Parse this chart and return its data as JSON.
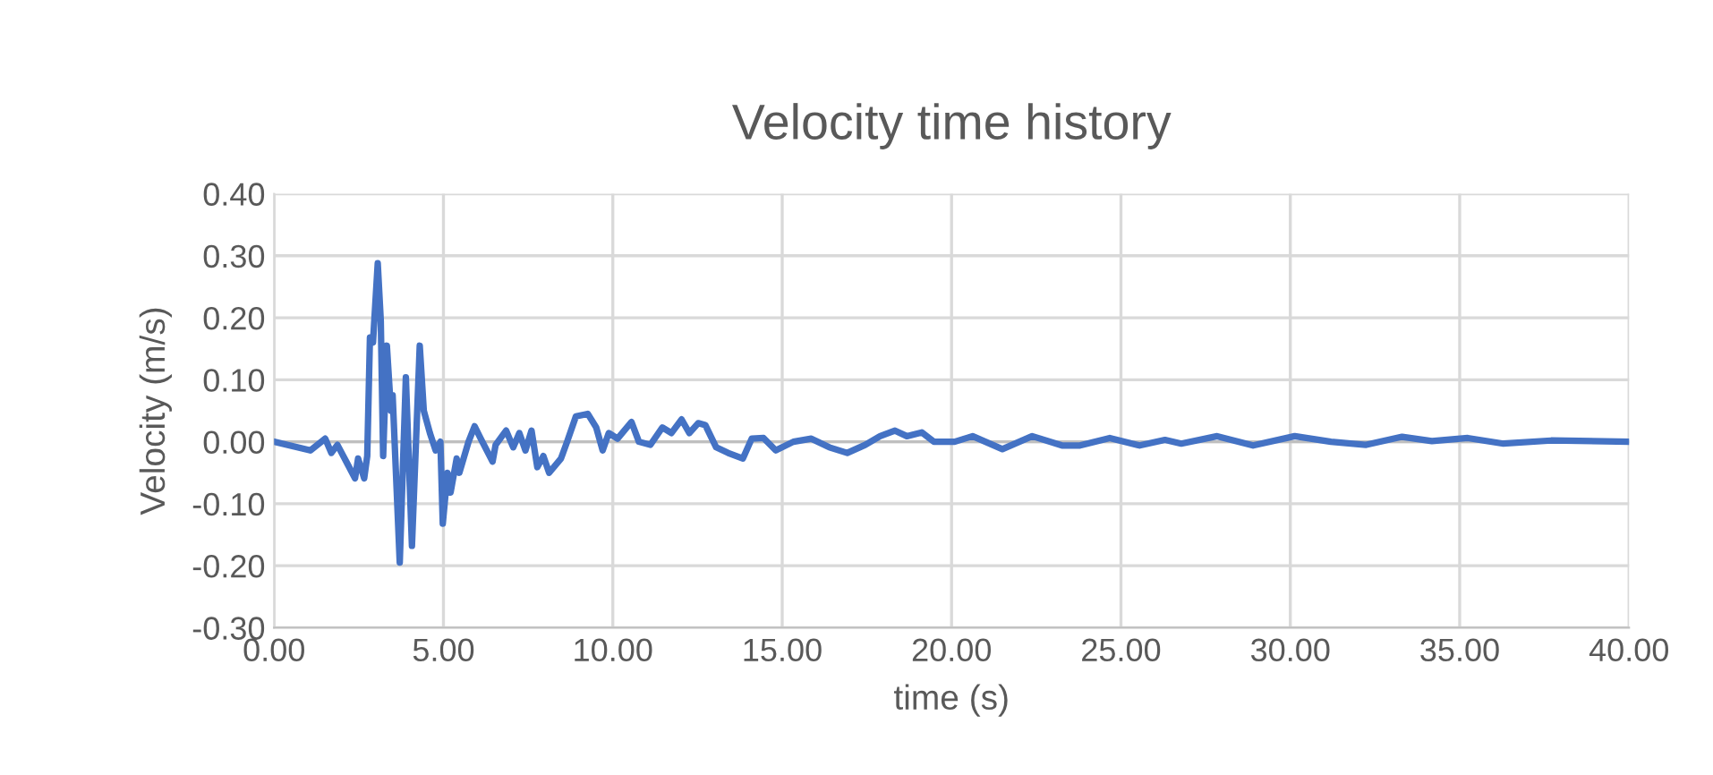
{
  "chart_data": {
    "type": "line",
    "title": "Velocity time history",
    "xlabel": "time (s)",
    "ylabel": "Velocity (m/s)",
    "xlim": [
      0,
      40
    ],
    "ylim": [
      -0.3,
      0.4
    ],
    "xticks": [
      {
        "value": 0,
        "label": "0.00"
      },
      {
        "value": 5,
        "label": "5.00"
      },
      {
        "value": 10,
        "label": "10.00"
      },
      {
        "value": 15,
        "label": "15.00"
      },
      {
        "value": 20,
        "label": "20.00"
      },
      {
        "value": 25,
        "label": "25.00"
      },
      {
        "value": 30,
        "label": "30.00"
      },
      {
        "value": 35,
        "label": "35.00"
      },
      {
        "value": 40,
        "label": "40.00"
      }
    ],
    "yticks": [
      {
        "value": -0.3,
        "label": "-0.30"
      },
      {
        "value": -0.2,
        "label": "-0.20"
      },
      {
        "value": -0.1,
        "label": "-0.10"
      },
      {
        "value": 0,
        "label": "0.00"
      },
      {
        "value": 0.1,
        "label": "0.10"
      },
      {
        "value": 0.2,
        "label": "0.20"
      },
      {
        "value": 0.3,
        "label": "0.30"
      },
      {
        "value": 0.4,
        "label": "0.40"
      }
    ],
    "grid": true,
    "marker": "none",
    "line_style": "solid",
    "x": [
      0,
      1.07,
      1.51,
      1.69,
      1.87,
      2.13,
      2.39,
      2.48,
      2.66,
      2.75,
      2.83,
      2.92,
      3.06,
      3.15,
      3.22,
      3.33,
      3.45,
      3.5,
      3.71,
      3.89,
      4.07,
      4.3,
      4.42,
      4.6,
      4.77,
      4.91,
      4.98,
      5.12,
      5.21,
      5.39,
      5.47,
      5.74,
      5.92,
      6.1,
      6.45,
      6.54,
      6.85,
      7.06,
      7.24,
      7.42,
      7.6,
      7.77,
      7.95,
      8.12,
      8.47,
      8.65,
      8.91,
      9.26,
      9.51,
      9.7,
      9.88,
      10.14,
      10.55,
      10.77,
      11.11,
      11.46,
      11.73,
      12.03,
      12.26,
      12.52,
      12.73,
      13.05,
      13.4,
      13.84,
      14.1,
      14.45,
      14.81,
      15.33,
      15.86,
      16.39,
      16.92,
      17.45,
      17.89,
      18.33,
      18.68,
      19.12,
      19.48,
      20.09,
      20.62,
      21.5,
      22.38,
      23.26,
      23.79,
      24.67,
      25.55,
      26.3,
      26.78,
      27.84,
      28.9,
      30.13,
      31.2,
      32.24,
      33.3,
      34.18,
      35.24,
      36.29,
      37.7,
      40
    ],
    "series": [
      {
        "color": "#4472c4",
        "values": [
          0,
          -0.014,
          0.005,
          -0.018,
          -0.005,
          -0.032,
          -0.059,
          -0.027,
          -0.059,
          -0.023,
          0.168,
          0.16,
          0.288,
          0.195,
          -0.023,
          0.155,
          0.05,
          0.075,
          -0.195,
          0.104,
          -0.168,
          0.155,
          0.05,
          0.014,
          -0.014,
          0,
          -0.132,
          -0.05,
          -0.082,
          -0.027,
          -0.05,
          0,
          0.025,
          0.005,
          -0.032,
          -0.005,
          0.018,
          -0.009,
          0.014,
          -0.014,
          0.018,
          -0.041,
          -0.023,
          -0.05,
          -0.027,
          0,
          0.041,
          0.045,
          0.023,
          -0.014,
          0.014,
          0.005,
          0.032,
          0,
          -0.005,
          0.023,
          0.014,
          0.036,
          0.014,
          0.03,
          0.027,
          -0.009,
          -0.018,
          -0.027,
          0.005,
          0.006,
          -0.014,
          0,
          0.005,
          -0.009,
          -0.018,
          -0.005,
          0.009,
          0.018,
          0.009,
          0.015,
          0,
          0,
          0.009,
          -0.012,
          0.009,
          -0.006,
          -0.006,
          0.006,
          -0.006,
          0.003,
          -0.003,
          0.009,
          -0.006,
          0.009,
          0,
          -0.005,
          0.008,
          0.001,
          0.006,
          -0.003,
          0.002,
          0
        ]
      }
    ]
  }
}
